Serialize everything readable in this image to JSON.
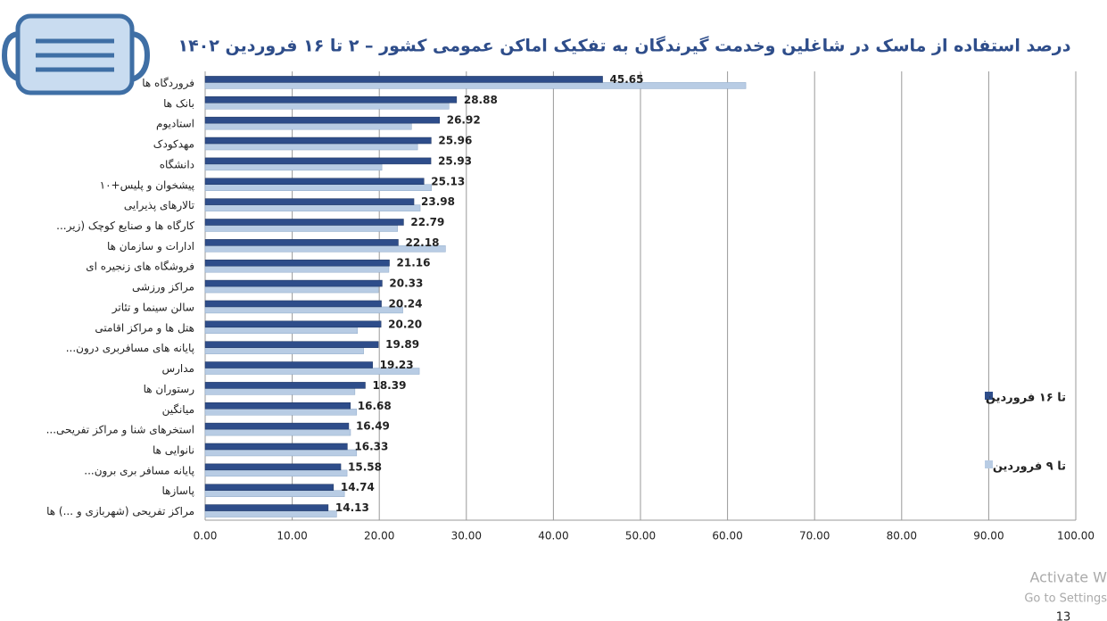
{
  "chart_data": {
    "type": "bar",
    "orientation": "horizontal",
    "title": "درصد استفاده از ماسک در شاغلین وخدمت گیرندگان به تفکیک اماکن عمومی کشور – ۲ تا ۱۶ فروردین ۱۴۰۲",
    "categories": [
      "فروردگاه ها",
      "بانک ها",
      "استادیوم",
      "مهدکودک",
      "دانشگاه",
      "پیشخوان و پلیس+۱۰",
      "تالارهای پذیرایی",
      "کارگاه ها و صنایع کوچک (زیر...",
      "ادارات و سازمان ها",
      "فروشگاه های زنجیره ای",
      "مراکز ورزشی",
      "سالن سینما و تئاتر",
      "هتل ها و مراکز اقامتی",
      "پایانه های مسافربری درون...",
      "مدارس",
      "رستوران ها",
      "میانگین",
      "استخرهای شنا و مراکز تفریحی...",
      "نانوایی ها",
      "پایانه مسافر بری برون...",
      "پاسازها",
      "مراکز تفریحی (شهربازی و ...) ها"
    ],
    "series": [
      {
        "name": "تا ۹ فروردین",
        "color": "#b8cce4",
        "values": [
          62.1,
          28.0,
          23.7,
          24.4,
          20.3,
          26.0,
          24.7,
          22.1,
          27.6,
          21.1,
          19.9,
          22.7,
          17.5,
          18.2,
          24.6,
          17.2,
          17.4,
          16.7,
          17.4,
          16.3,
          16.0,
          15.1
        ]
      },
      {
        "name": "تا ۱۶ فروردین",
        "color": "#2e4d8a",
        "values": [
          45.65,
          28.88,
          26.92,
          25.96,
          25.93,
          25.13,
          23.98,
          22.79,
          22.18,
          21.16,
          20.33,
          20.24,
          20.2,
          19.89,
          19.23,
          18.39,
          16.68,
          16.49,
          16.33,
          15.58,
          14.74,
          14.13
        ],
        "value_labels": [
          "45.65",
          "28.88",
          "26.92",
          "25.96",
          "25.93",
          "25.13",
          "23.98",
          "22.79",
          "22.18",
          "21.16",
          "20.33",
          "20.24",
          "20.20",
          "19.89",
          "19.23",
          "18.39",
          "16.68",
          "16.49",
          "16.33",
          "15.58",
          "14.74",
          "14.13"
        ]
      }
    ],
    "xlim": [
      0,
      100
    ],
    "xticks": [
      {
        "value": 0,
        "label": "0.00"
      },
      {
        "value": 10,
        "label": "10.00"
      },
      {
        "value": 20,
        "label": "20.00"
      },
      {
        "value": 30,
        "label": "30.00"
      },
      {
        "value": 40,
        "label": "40.00"
      },
      {
        "value": 50,
        "label": "50.00"
      },
      {
        "value": 60,
        "label": "60.00"
      },
      {
        "value": 70,
        "label": "70.00"
      },
      {
        "value": 80,
        "label": "80.00"
      },
      {
        "value": 90,
        "label": "90.00"
      },
      {
        "value": 100,
        "label": "100.00"
      }
    ],
    "grid": true,
    "legend": "right"
  },
  "overlay": {
    "activate": "Activate W",
    "settings": "Go to Settings",
    "page_number": "13"
  }
}
